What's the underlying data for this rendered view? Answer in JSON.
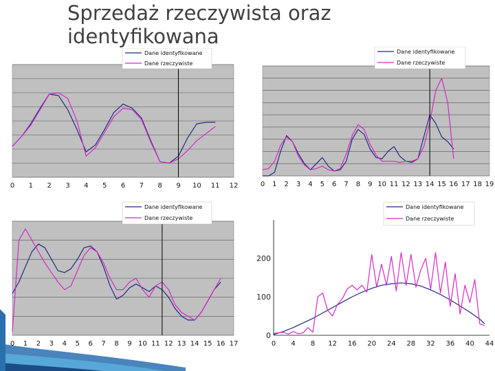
{
  "title": "Sprzedaż rzeczywista oraz identyfikowana",
  "colors": {
    "identified": "#1f2a80",
    "actual": "#d428c8",
    "plot_bg": "#c0c0c0",
    "cut_line": "#000000"
  },
  "chart_data": [
    {
      "type": "line",
      "legend_position": "top",
      "plot_bg": "gray",
      "grid": true,
      "xlim": [
        0,
        12
      ],
      "x_ticks": [
        0,
        1,
        2,
        3,
        4,
        5,
        6,
        7,
        8,
        9,
        10,
        11,
        12
      ],
      "ylim": [
        0,
        8
      ],
      "y_ticks": [
        0,
        1,
        2,
        3,
        4,
        5,
        6,
        7,
        8
      ],
      "y_tick_labels": [
        "",
        "",
        "",
        "",
        "",
        "",
        "",
        "",
        ""
      ],
      "vline_x": 9,
      "series": [
        {
          "name": "Dane identyfikowane",
          "role": "identified",
          "x": [
            0,
            0.5,
            1,
            1.5,
            2,
            2.5,
            3,
            3.5,
            4,
            4.5,
            5,
            5.5,
            6,
            6.5,
            7,
            7.5,
            8,
            8.5,
            9,
            9.5,
            10,
            10.5,
            11
          ],
          "y": [
            2.2,
            2.9,
            3.8,
            4.9,
            5.9,
            5.8,
            4.8,
            3.4,
            1.8,
            2.3,
            3.4,
            4.6,
            5.2,
            4.9,
            4.2,
            2.6,
            1.1,
            1.0,
            1.5,
            2.8,
            3.8,
            3.9,
            3.9
          ]
        },
        {
          "name": "Dane rzeczywiste",
          "role": "actual",
          "x": [
            0,
            0.5,
            1,
            1.5,
            2,
            2.5,
            3,
            3.5,
            4,
            4.5,
            5,
            5.5,
            6,
            6.5,
            7,
            7.5,
            8,
            8.5,
            9,
            9.5,
            10,
            10.5,
            11
          ],
          "y": [
            2.2,
            2.9,
            3.7,
            4.8,
            5.9,
            6.0,
            5.6,
            4.0,
            1.5,
            2.1,
            3.2,
            4.3,
            4.9,
            4.8,
            4.1,
            2.5,
            1.1,
            1.0,
            1.3,
            1.9,
            2.6,
            3.1,
            3.6
          ]
        }
      ]
    },
    {
      "type": "line",
      "legend_position": "top",
      "plot_bg": "gray",
      "grid": true,
      "xlim": [
        0,
        19
      ],
      "x_ticks": [
        0,
        1,
        2,
        3,
        4,
        5,
        6,
        7,
        8,
        9,
        10,
        11,
        12,
        13,
        14,
        15,
        16,
        17,
        18,
        19
      ],
      "ylim": [
        0,
        90
      ],
      "y_ticks": [
        0,
        10,
        20,
        30,
        40,
        50,
        60,
        70,
        80,
        90
      ],
      "y_tick_labels": [
        "",
        "",
        "",
        "",
        "",
        "",
        "",
        "",
        "",
        ""
      ],
      "vline_x": 14,
      "series": [
        {
          "name": "Dane identyfikowane",
          "role": "identified",
          "x": [
            0,
            0.5,
            1,
            1.5,
            2,
            2.5,
            3,
            3.5,
            4,
            4.5,
            5,
            5.5,
            6,
            6.5,
            7,
            7.5,
            8,
            8.5,
            9,
            9.5,
            10,
            10.5,
            11,
            11.5,
            12,
            12.5,
            13,
            13.5,
            14,
            14.5,
            15,
            15.5,
            16
          ],
          "y": [
            0,
            0,
            3,
            20,
            33,
            28,
            18,
            10,
            5,
            10,
            15,
            8,
            4,
            5,
            12,
            30,
            38,
            34,
            22,
            15,
            14,
            20,
            24,
            16,
            12,
            11,
            14,
            32,
            50,
            43,
            32,
            28,
            22
          ]
        },
        {
          "name": "Dane rzeczywiste",
          "role": "actual",
          "x": [
            0,
            0.5,
            1,
            1.5,
            2,
            2.5,
            3,
            3.5,
            4,
            4.5,
            5,
            5.5,
            6,
            6.5,
            7,
            7.5,
            8,
            8.5,
            9,
            9.5,
            10,
            10.5,
            11,
            11.5,
            12,
            12.5,
            13,
            13.5,
            14,
            14.5,
            15,
            15.5,
            16
          ],
          "y": [
            5,
            6,
            12,
            25,
            32,
            28,
            16,
            9,
            5,
            6,
            8,
            5,
            4,
            6,
            18,
            33,
            42,
            38,
            26,
            17,
            12,
            12,
            12,
            11,
            12,
            12,
            14,
            24,
            44,
            70,
            80,
            60,
            14
          ]
        }
      ]
    },
    {
      "type": "line",
      "legend_position": "top",
      "plot_bg": "gray",
      "grid": true,
      "xlim": [
        0,
        17
      ],
      "x_ticks": [
        0,
        1,
        2,
        3,
        4,
        5,
        6,
        7,
        8,
        9,
        10,
        11,
        12,
        13,
        14,
        15,
        16,
        17
      ],
      "ylim": [
        0,
        60
      ],
      "y_ticks": [
        0,
        10,
        20,
        30,
        40,
        50,
        60
      ],
      "y_tick_labels": [
        "",
        "",
        "",
        "",
        "",
        "",
        ""
      ],
      "vline_x": 11.5,
      "series": [
        {
          "name": "Dane identyfikowane",
          "role": "identified",
          "x": [
            0,
            0.5,
            1,
            1.5,
            2,
            2.5,
            3,
            3.5,
            4,
            4.5,
            5,
            5.5,
            6,
            6.5,
            7,
            7.5,
            8,
            8.5,
            9,
            9.5,
            10,
            10.5,
            11,
            11.5,
            12,
            12.5,
            13,
            13.5,
            14,
            14.5,
            15,
            15.5,
            16
          ],
          "y": [
            22,
            28,
            36,
            44,
            48,
            46,
            40,
            34,
            33,
            35,
            40,
            46,
            47,
            44,
            36,
            26,
            19,
            21,
            25,
            27,
            25,
            23,
            26,
            24,
            20,
            14,
            10,
            8,
            8,
            12,
            18,
            24,
            28
          ]
        },
        {
          "name": "Dane rzeczywiste",
          "role": "actual",
          "x": [
            0,
            0.5,
            1,
            1.5,
            2,
            2.5,
            3,
            3.5,
            4,
            4.5,
            5,
            5.5,
            6,
            6.5,
            7,
            7.5,
            8,
            8.5,
            9,
            9.5,
            10,
            10.5,
            11,
            11.5,
            12,
            12.5,
            13,
            13.5,
            14,
            14.5,
            15,
            15.5,
            16
          ],
          "y": [
            2,
            50,
            56,
            50,
            44,
            38,
            33,
            28,
            24,
            26,
            34,
            42,
            46,
            44,
            38,
            30,
            24,
            24,
            28,
            30,
            24,
            20,
            26,
            28,
            24,
            16,
            12,
            10,
            8,
            12,
            18,
            24,
            30
          ]
        }
      ]
    },
    {
      "type": "line",
      "legend_position": "top",
      "plot_bg": "white",
      "grid": false,
      "xlim": [
        0,
        44
      ],
      "x_ticks": [
        0,
        4,
        8,
        12,
        16,
        20,
        24,
        28,
        32,
        36,
        40,
        44
      ],
      "ylim": [
        0,
        300
      ],
      "y_ticks": [
        0,
        100,
        200
      ],
      "y_tick_labels": [
        "0",
        "100",
        "200"
      ],
      "vline_x": null,
      "series": [
        {
          "name": "Dane identyfikowane",
          "role": "identified",
          "x": [
            0,
            2,
            4,
            6,
            8,
            10,
            12,
            14,
            16,
            18,
            20,
            22,
            24,
            26,
            28,
            30,
            32,
            34,
            36,
            38,
            40,
            42,
            43
          ],
          "y": [
            2,
            10,
            20,
            32,
            44,
            58,
            72,
            86,
            100,
            112,
            122,
            130,
            134,
            136,
            134,
            128,
            118,
            106,
            92,
            76,
            60,
            42,
            30
          ]
        },
        {
          "name": "Dane rzeczywiste",
          "role": "actual",
          "x": [
            0,
            2,
            3,
            4,
            5,
            6,
            7,
            8,
            9,
            10,
            11,
            12,
            13,
            14,
            15,
            16,
            17,
            18,
            19,
            20,
            21,
            22,
            23,
            24,
            25,
            26,
            27,
            28,
            29,
            30,
            31,
            32,
            33,
            34,
            35,
            36,
            37,
            38,
            39,
            40,
            41,
            42,
            43
          ],
          "y": [
            5,
            8,
            3,
            10,
            4,
            6,
            20,
            8,
            100,
            110,
            65,
            50,
            80,
            95,
            120,
            130,
            118,
            130,
            112,
            210,
            125,
            185,
            130,
            205,
            115,
            215,
            130,
            210,
            125,
            170,
            200,
            120,
            215,
            110,
            190,
            75,
            160,
            55,
            130,
            85,
            145,
            30,
            25
          ]
        }
      ]
    }
  ]
}
